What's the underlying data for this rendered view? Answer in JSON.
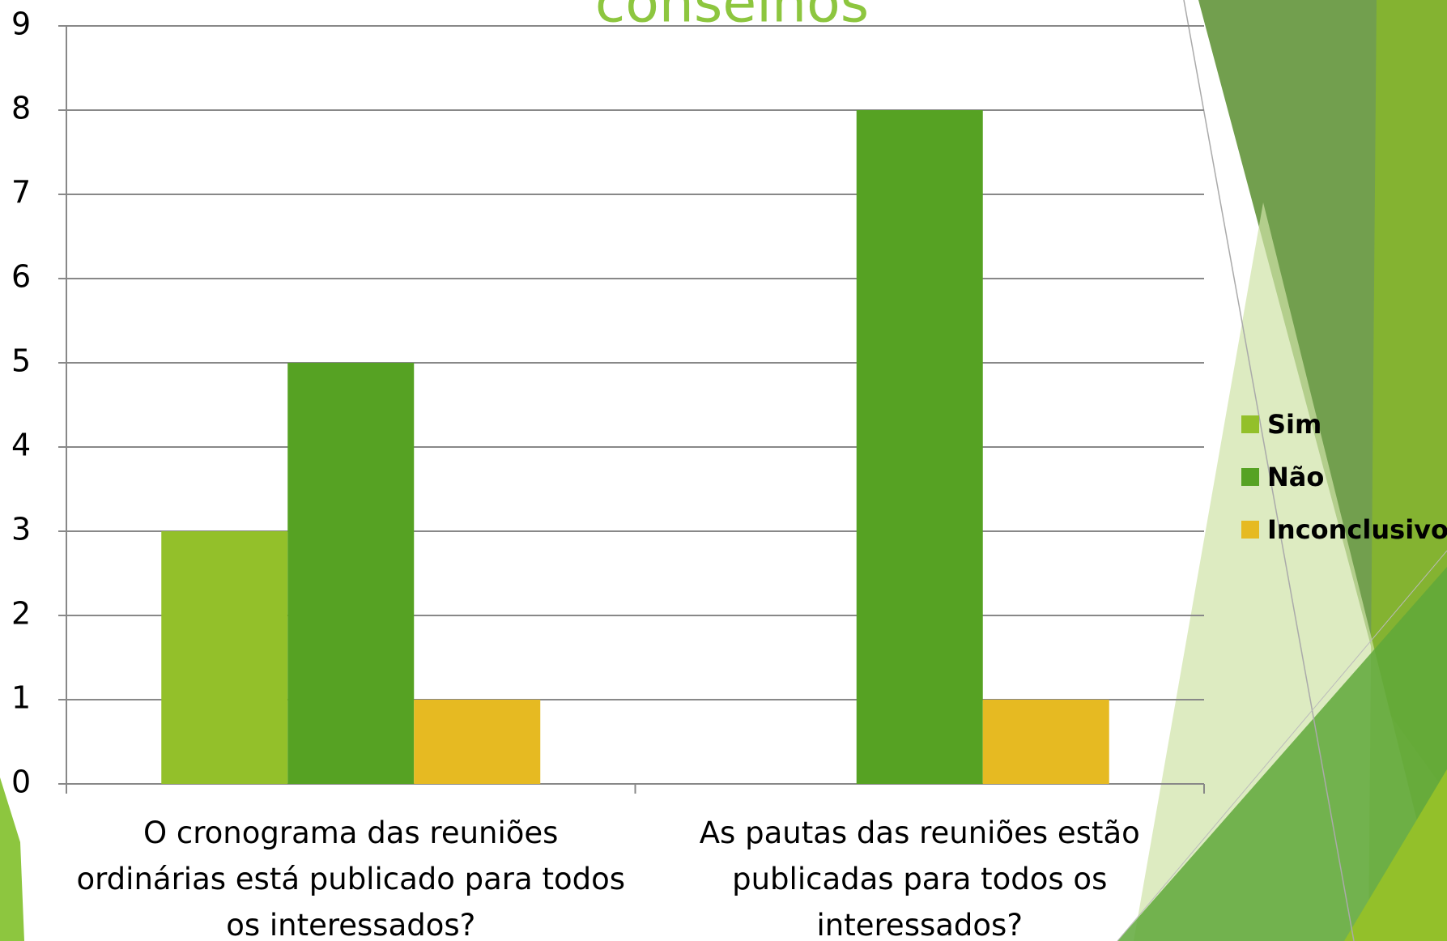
{
  "chart_data": {
    "type": "bar",
    "title": "conselhos",
    "categories": [
      "O cronograma das reuniões ordinárias está publicado para todos os interessados?",
      "As pautas das reuniões estão publicadas para todos os interessados?"
    ],
    "series": [
      {
        "name": "Sim",
        "color": "#93c02a",
        "values": [
          3,
          0
        ]
      },
      {
        "name": "Não",
        "color": "#56a223",
        "values": [
          5,
          8
        ]
      },
      {
        "name": "Inconclusivo",
        "color": "#e6ba22",
        "values": [
          1,
          1
        ]
      }
    ],
    "ylim": [
      0,
      9
    ],
    "yticks": [
      0,
      1,
      2,
      3,
      4,
      5,
      6,
      7,
      8,
      9
    ],
    "grid": true,
    "legend": "right"
  }
}
